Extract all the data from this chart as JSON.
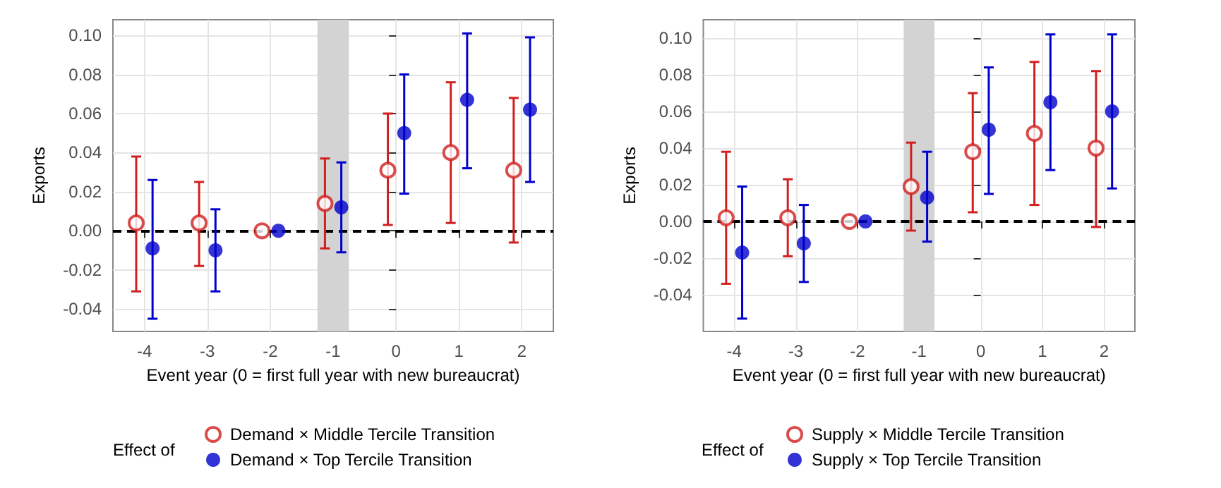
{
  "chart_data": [
    {
      "type": "scatter",
      "xlabel": "Event year (0 = first full year with new bureaucrat)",
      "ylabel": "Exports",
      "legend_title": "Effect of",
      "legend": "bottom",
      "grid": true,
      "marker": "circle",
      "xlim": [
        -4.5,
        2.5
      ],
      "xticks": [
        -4,
        -3,
        -2,
        -1,
        0,
        1,
        2
      ],
      "ylim": [
        -0.0515,
        0.108
      ],
      "yticks": [
        {
          "value": -0.04,
          "label": "-0.04"
        },
        {
          "value": -0.02,
          "label": "-0.02"
        },
        {
          "value": 0,
          "label": "0.00"
        },
        {
          "value": 0.02,
          "label": "0.02"
        },
        {
          "value": 0.04,
          "label": "0.04"
        },
        {
          "value": 0.06,
          "label": "0.06"
        },
        {
          "value": 0.08,
          "label": "0.08"
        },
        {
          "value": 0.1,
          "label": "0.10"
        }
      ],
      "ref_lines": [
        {
          "axis": "y",
          "value": 0,
          "line_style": "dashed",
          "color": "#000000"
        }
      ],
      "bands": [
        {
          "axis": "x",
          "from": -1.25,
          "to": -0.75,
          "color": "#d3d3d3"
        }
      ],
      "series": [
        {
          "name": "Demand × Middle Tercile Transition",
          "color": "#d11f1f",
          "x": [
            -4.13,
            -3.13,
            -2.13,
            -1.13,
            -0.13,
            0.87,
            1.87
          ],
          "values": [
            0.004,
            0.004,
            0,
            0.014,
            0.031,
            0.04,
            0.031
          ],
          "errors": [
            [
              -0.031,
              0.038
            ],
            [
              -0.018,
              0.025
            ],
            null,
            [
              -0.009,
              0.037
            ],
            [
              0.003,
              0.06
            ],
            [
              0.004,
              0.076
            ],
            [
              -0.006,
              0.068
            ]
          ]
        },
        {
          "name": "Demand × Top Tercile Transition",
          "color": "#0000cc",
          "x": [
            -3.87,
            -2.87,
            -1.87,
            -0.87,
            0.13,
            1.13,
            2.13
          ],
          "values": [
            -0.009,
            -0.01,
            0,
            0.012,
            0.05,
            0.067,
            0.062
          ],
          "errors": [
            [
              -0.045,
              0.026
            ],
            [
              -0.031,
              0.011
            ],
            null,
            [
              -0.011,
              0.035
            ],
            [
              0.019,
              0.08
            ],
            [
              0.032,
              0.101
            ],
            [
              0.025,
              0.099
            ]
          ]
        }
      ]
    },
    {
      "type": "scatter",
      "xlabel": "Event year (0 = first full year with new bureaucrat)",
      "ylabel": "Exports",
      "legend_title": "Effect of",
      "legend": "bottom",
      "grid": true,
      "marker": "circle",
      "xlim": [
        -4.5,
        2.5
      ],
      "xticks": [
        -4,
        -3,
        -2,
        -1,
        0,
        1,
        2
      ],
      "ylim": [
        -0.06,
        0.11
      ],
      "yticks": [
        {
          "value": -0.04,
          "label": "-0.04"
        },
        {
          "value": -0.02,
          "label": "-0.02"
        },
        {
          "value": 0,
          "label": "0.00"
        },
        {
          "value": 0.02,
          "label": "0.02"
        },
        {
          "value": 0.04,
          "label": "0.04"
        },
        {
          "value": 0.06,
          "label": "0.06"
        },
        {
          "value": 0.08,
          "label": "0.08"
        },
        {
          "value": 0.1,
          "label": "0.10"
        }
      ],
      "ref_lines": [
        {
          "axis": "y",
          "value": 0,
          "line_style": "dashed",
          "color": "#000000"
        }
      ],
      "bands": [
        {
          "axis": "x",
          "from": -1.25,
          "to": -0.75,
          "color": "#d3d3d3"
        }
      ],
      "series": [
        {
          "name": "Supply × Middle Tercile Transition",
          "color": "#d11f1f",
          "x": [
            -4.13,
            -3.13,
            -2.13,
            -1.13,
            -0.13,
            0.87,
            1.87
          ],
          "values": [
            0.002,
            0.002,
            0,
            0.019,
            0.038,
            0.048,
            0.04
          ],
          "errors": [
            [
              -0.034,
              0.038
            ],
            [
              -0.019,
              0.023
            ],
            null,
            [
              -0.005,
              0.043
            ],
            [
              0.005,
              0.07
            ],
            [
              0.009,
              0.087
            ],
            [
              -0.003,
              0.082
            ]
          ]
        },
        {
          "name": "Supply × Top Tercile Transition",
          "color": "#0000cc",
          "x": [
            -3.87,
            -2.87,
            -1.87,
            -0.87,
            0.13,
            1.13,
            2.13
          ],
          "values": [
            -0.017,
            -0.012,
            0,
            0.013,
            0.05,
            0.065,
            0.06
          ],
          "errors": [
            [
              -0.053,
              0.019
            ],
            [
              -0.033,
              0.009
            ],
            null,
            [
              -0.011,
              0.038
            ],
            [
              0.015,
              0.084
            ],
            [
              0.028,
              0.102
            ],
            [
              0.018,
              0.102
            ]
          ]
        }
      ]
    }
  ]
}
